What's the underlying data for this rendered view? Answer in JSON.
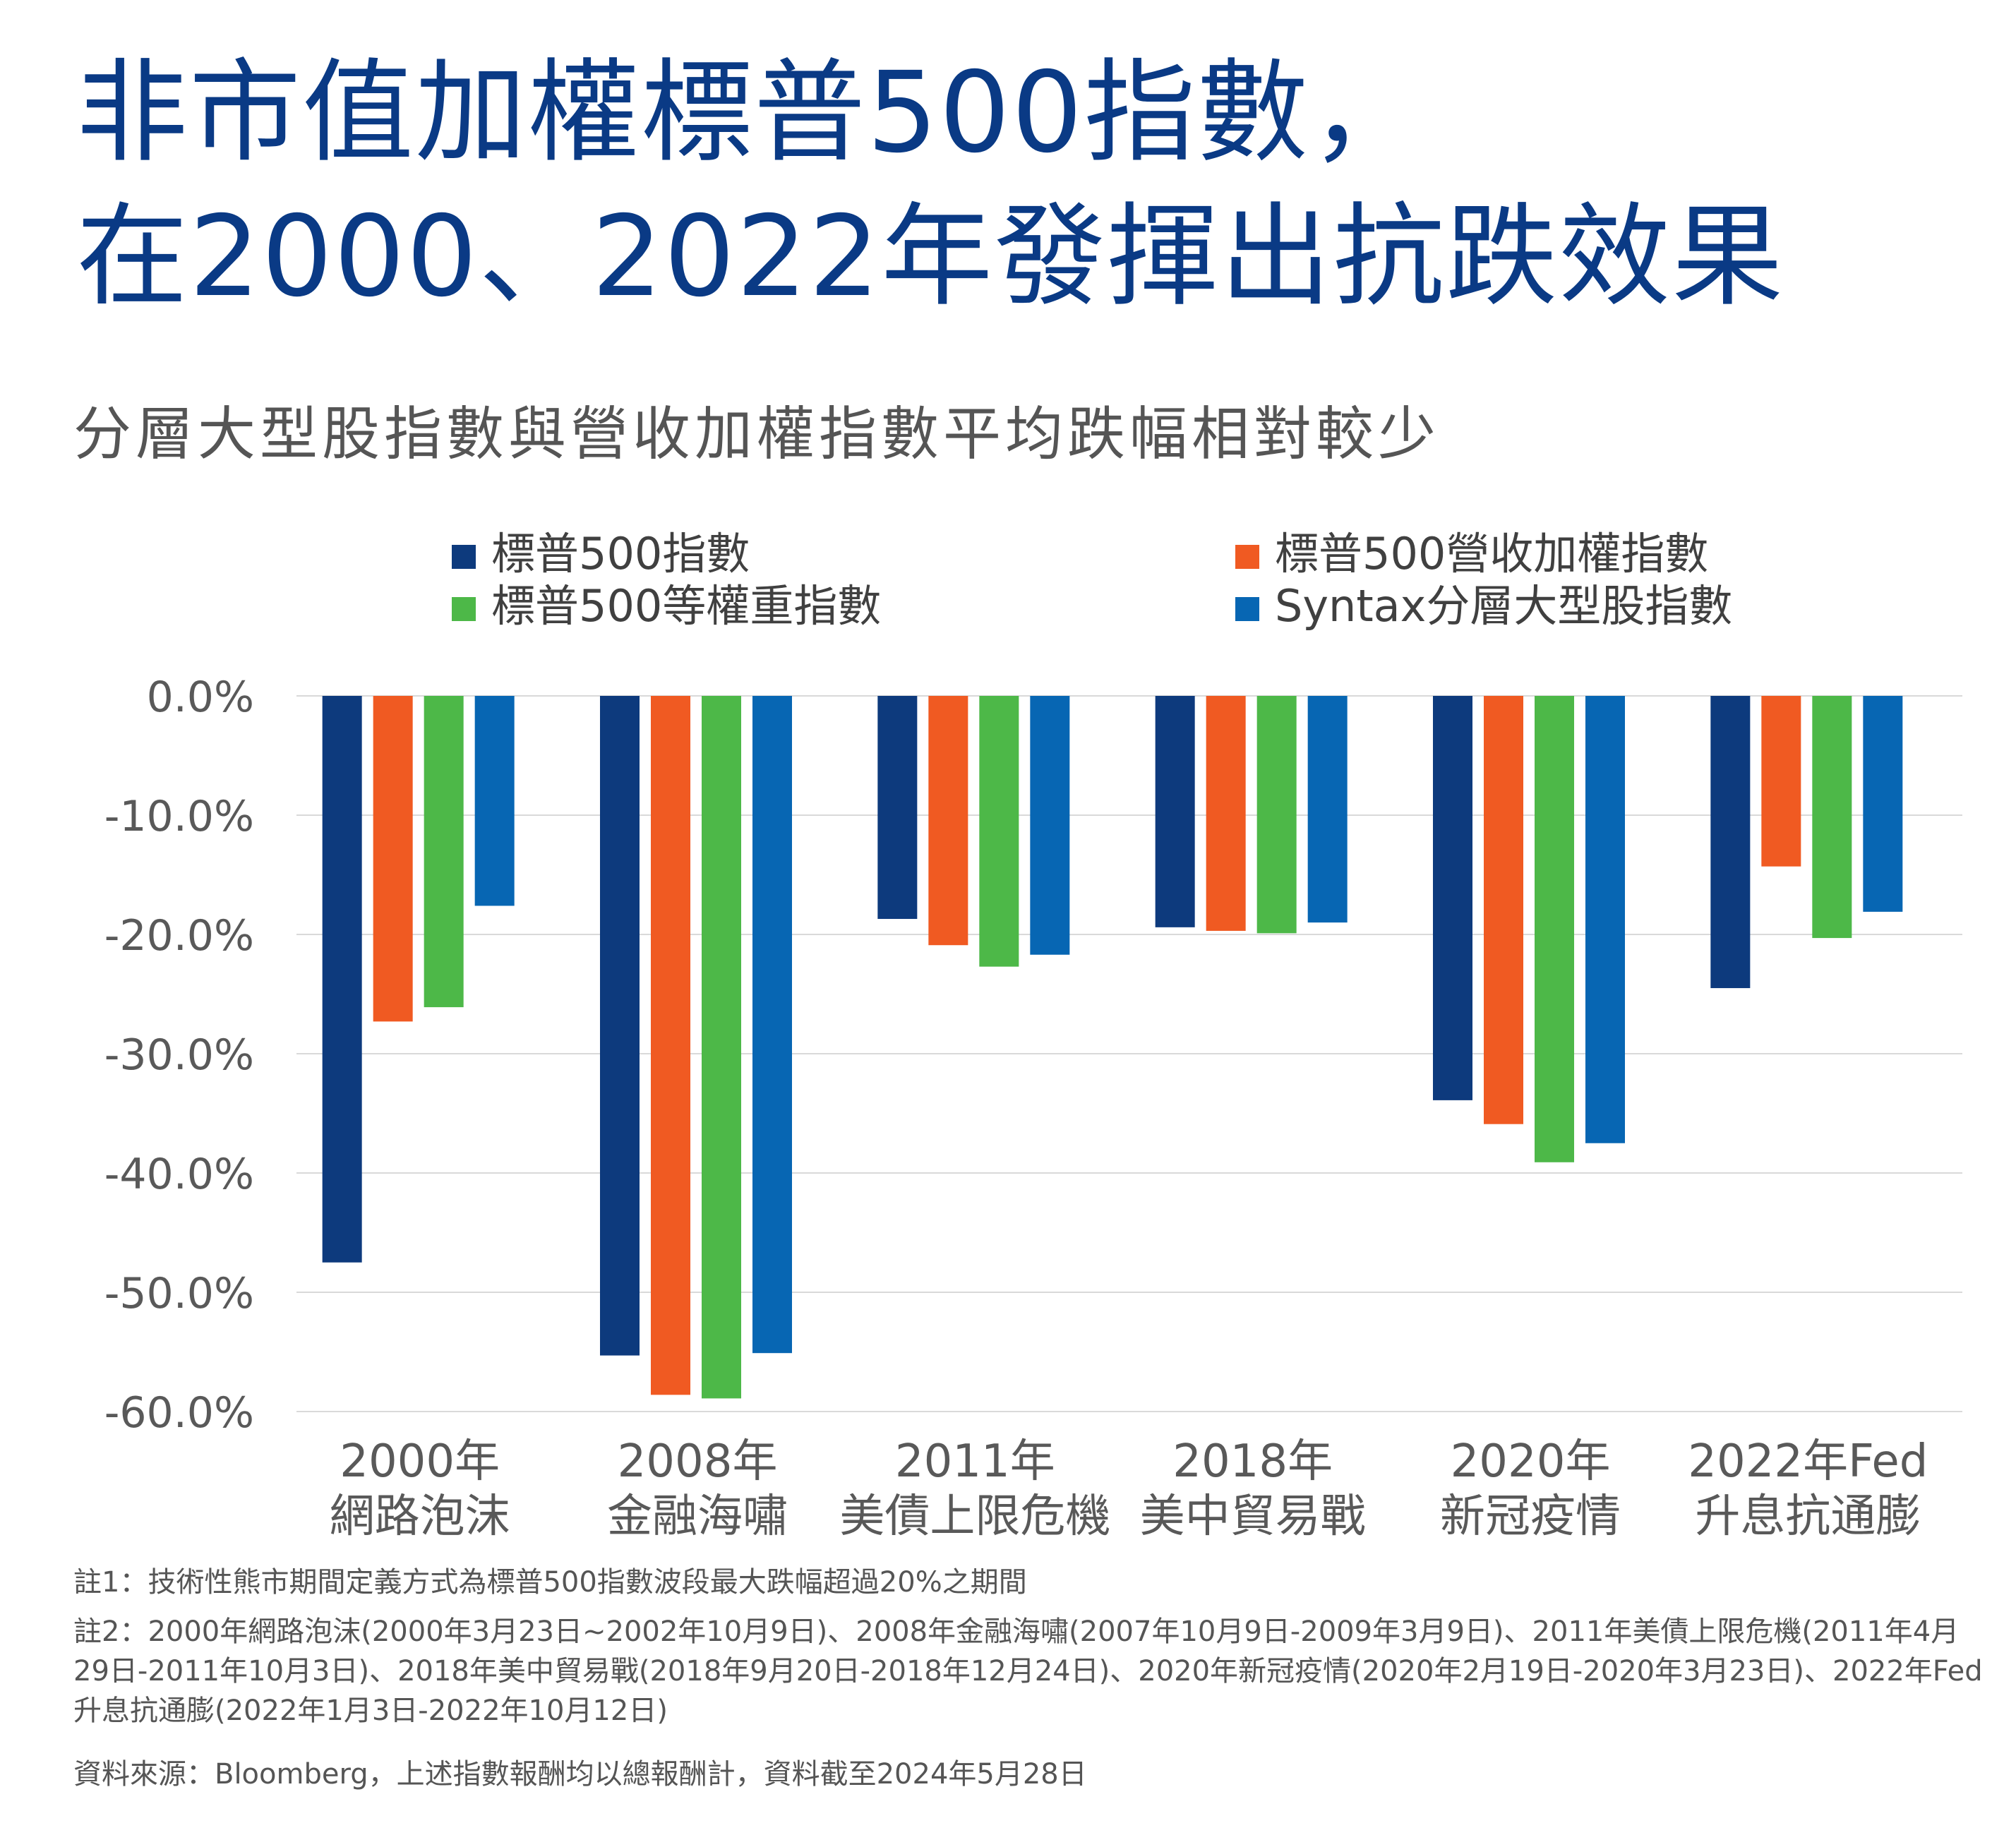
{
  "title": {
    "line1": "非市值加權標普500指數，",
    "line2": "在2000、2022年發揮出抗跌效果"
  },
  "subtitle": "分層大型股指數與營收加權指數平均跌幅相對較少",
  "chart_data": {
    "type": "bar",
    "categories": [
      [
        "2000年",
        "網路泡沫"
      ],
      [
        "2008年",
        "金融海嘯"
      ],
      [
        "2011年",
        "美債上限危機"
      ],
      [
        "2018年",
        "美中貿易戰"
      ],
      [
        "2020年",
        "新冠疫情"
      ],
      [
        "2022年Fed",
        "升息抗通膨"
      ]
    ],
    "series": [
      {
        "name": "標普500指數",
        "color": "#0d3a7d",
        "values": [
          -47.5,
          -55.3,
          -18.7,
          -19.4,
          -33.9,
          -24.5
        ]
      },
      {
        "name": "標普500營收加權指數",
        "color": "#f05a22",
        "values": [
          -27.3,
          -58.6,
          -20.9,
          -19.7,
          -35.9,
          -14.3
        ]
      },
      {
        "name": "標普500等權重指數",
        "color": "#4db848",
        "values": [
          -26.1,
          -58.9,
          -22.7,
          -19.9,
          -39.1,
          -20.3
        ]
      },
      {
        "name": "Syntax分層大型股指數",
        "color": "#0766b3",
        "values": [
          -17.6,
          -55.1,
          -21.7,
          -19.0,
          -37.5,
          -18.1
        ]
      }
    ],
    "yticks": [
      "0.0%",
      "-10.0%",
      "-20.0%",
      "-30.0%",
      "-40.0%",
      "-50.0%",
      "-60.0%"
    ],
    "ylim": [
      -60,
      0
    ],
    "grid": true,
    "legend": "top"
  },
  "notes": {
    "note1": "註1：技術性熊市期間定義方式為標普500指數波段最大跌幅超過20%之期間",
    "note2": "註2：2000年網路泡沫(2000年3月23日~2002年10月9日)、2008年金融海嘯(2007年10月9日-2009年3月9日)、2011年美債上限危機(2011年4月29日-2011年10月3日)、2018年美中貿易戰(2018年9月20日-2018年12月24日)、2020年新冠疫情(2020年2月19日-2020年3月23日)、2022年Fed升息抗通膨(2022年1月3日-2022年10月12日)",
    "source": "資料來源：Bloomberg，上述指數報酬均以總報酬計，資料截至2024年5月28日"
  }
}
